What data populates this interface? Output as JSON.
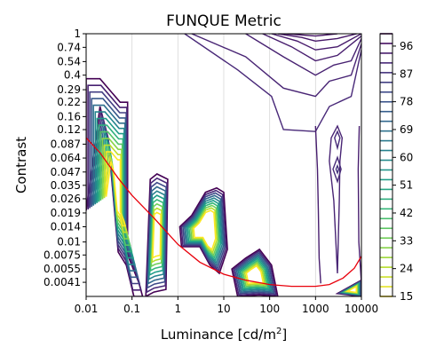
{
  "chart_data": {
    "type": "contour",
    "title": "FUNQUE Metric",
    "xlabel": "Luminance [cd/m²]",
    "xlabel_base": "Luminance [cd/m",
    "xlabel_sup": "2",
    "xlabel_end": "]",
    "ylabel": "Contrast",
    "x_scale": "log",
    "y_scale": "log",
    "xlim": [
      0.01,
      10000
    ],
    "ylim": [
      0.003,
      1
    ],
    "grid": "vertical",
    "x_ticks": [
      {
        "value": 0.01,
        "label": "0.01"
      },
      {
        "value": 0.1,
        "label": "0.1"
      },
      {
        "value": 1,
        "label": "1"
      },
      {
        "value": 10,
        "label": "10"
      },
      {
        "value": 100,
        "label": "100"
      },
      {
        "value": 1000,
        "label": "1000"
      },
      {
        "value": 10000,
        "label": "10000"
      }
    ],
    "y_ticks": [
      {
        "value": 1,
        "label": "1"
      },
      {
        "value": 0.74,
        "label": "0.74"
      },
      {
        "value": 0.54,
        "label": "0.54"
      },
      {
        "value": 0.4,
        "label": "0.4"
      },
      {
        "value": 0.29,
        "label": "0.29"
      },
      {
        "value": 0.22,
        "label": "0.22"
      },
      {
        "value": 0.16,
        "label": "0.16"
      },
      {
        "value": 0.12,
        "label": "0.12"
      },
      {
        "value": 0.087,
        "label": "0.087"
      },
      {
        "value": 0.064,
        "label": "0.064"
      },
      {
        "value": 0.047,
        "label": "0.047"
      },
      {
        "value": 0.035,
        "label": "0.035"
      },
      {
        "value": 0.026,
        "label": "0.026"
      },
      {
        "value": 0.019,
        "label": "0.019"
      },
      {
        "value": 0.014,
        "label": "0.014"
      },
      {
        "value": 0.01,
        "label": "0.01"
      },
      {
        "value": 0.0075,
        "label": "0.0075"
      },
      {
        "value": 0.0055,
        "label": "0.0055"
      },
      {
        "value": 0.0041,
        "label": "0.0041"
      }
    ],
    "colorbar": {
      "colormap": "viridis (reversed)",
      "min": 15,
      "max": 100,
      "levels": 28,
      "tick_labels": [
        "96",
        "87",
        "78",
        "69",
        "60",
        "51",
        "42",
        "33",
        "24",
        "15"
      ]
    },
    "contour_groups": [
      {
        "name": "low-luminance-block",
        "level_range": [
          15,
          100
        ],
        "x": [
          0.01,
          0.08
        ],
        "y": [
          0.02,
          0.37
        ]
      },
      {
        "name": "dip-block",
        "level_range": [
          15,
          100
        ],
        "x": [
          0.08,
          0.17
        ],
        "y": [
          0.003,
          0.0075
        ]
      },
      {
        "name": "mid-block-1",
        "level_range": [
          15,
          100
        ],
        "x": [
          0.3,
          0.6
        ],
        "y": [
          0.003,
          0.045
        ]
      },
      {
        "name": "mid-block-2",
        "level_range": [
          15,
          100
        ],
        "x": [
          1,
          10
        ],
        "y": [
          0.01,
          0.033
        ]
      },
      {
        "name": "mid-block-3",
        "level_range": [
          15,
          100
        ],
        "x": [
          10,
          150
        ],
        "y": [
          0.003,
          0.0085
        ]
      },
      {
        "name": "high-contrast-lines",
        "level_range": [
          78,
          100
        ],
        "x": [
          1.3,
          10000
        ],
        "y": [
          0.11,
          1
        ]
      },
      {
        "name": "high-luminance-rings",
        "level_range": [
          78,
          87
        ],
        "x": [
          1000,
          5000
        ],
        "y": [
          0.004,
          0.13
        ]
      }
    ],
    "threshold_curve": {
      "color": "#e8000b",
      "x": [
        0.01,
        0.02,
        0.05,
        0.1,
        0.3,
        1,
        3,
        10,
        30,
        100,
        300,
        1000,
        2000,
        4000,
        7000,
        10000
      ],
      "y": [
        0.1,
        0.072,
        0.041,
        0.028,
        0.017,
        0.0095,
        0.0064,
        0.0049,
        0.0043,
        0.0039,
        0.00375,
        0.00375,
        0.0039,
        0.0045,
        0.0056,
        0.0073
      ]
    }
  }
}
